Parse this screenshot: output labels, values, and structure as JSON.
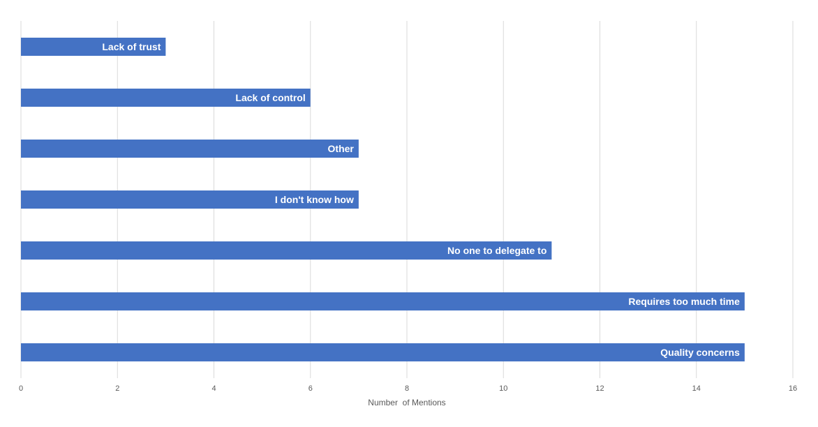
{
  "chart_data": {
    "type": "bar",
    "orientation": "horizontal",
    "categories": [
      "Lack of trust",
      "Lack of control",
      "Other",
      "I don't know how",
      "No one to delegate to",
      "Requires too much time",
      "Quality concerns"
    ],
    "values": [
      3,
      6,
      7,
      7,
      11,
      15,
      15
    ],
    "title": "",
    "xlabel": "Number  of Mentions",
    "ylabel": "",
    "xlim": [
      0,
      16
    ],
    "xticks": [
      0,
      2,
      4,
      6,
      8,
      10,
      12,
      14,
      16
    ],
    "grid": true,
    "legend": "none",
    "data_labels": "category names inside bar ends",
    "colors": {
      "bar": "#4472C4",
      "gridline": "#D9D9D9",
      "axis_text": "#595959",
      "label_text": "#FFFFFF"
    }
  }
}
